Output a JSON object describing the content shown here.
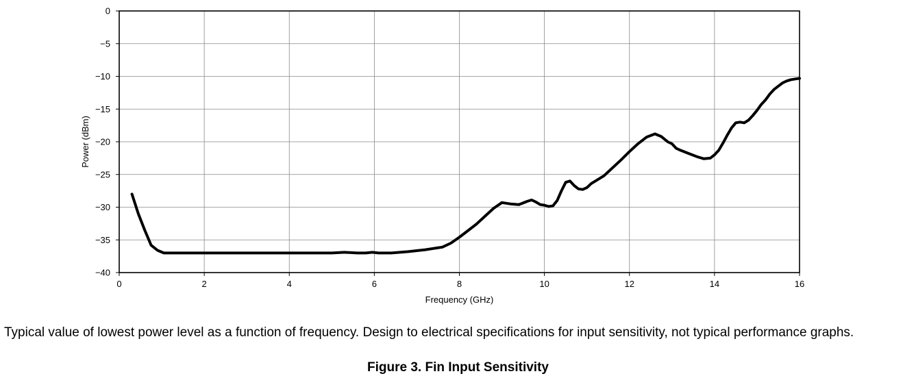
{
  "chart_data": {
    "type": "line",
    "title": "",
    "xlabel": "Frequency (GHz)",
    "ylabel": "Power (dBm)",
    "xlim": [
      0,
      16
    ],
    "ylim": [
      -40,
      0
    ],
    "xticks": [
      0,
      2,
      4,
      6,
      8,
      10,
      12,
      14,
      16
    ],
    "yticks": [
      0,
      -5,
      -10,
      -15,
      -20,
      -25,
      -30,
      -35,
      -40
    ],
    "xtick_labels": [
      "0",
      "2",
      "4",
      "6",
      "8",
      "10",
      "12",
      "14",
      "16"
    ],
    "ytick_labels": [
      "0",
      "−5",
      "−10",
      "−15",
      "−20",
      "−25",
      "−30",
      "−35",
      "−40"
    ],
    "grid": true,
    "legend": "none",
    "line_color": "#000000",
    "series": [
      {
        "x": [
          0.3,
          0.45,
          0.6,
          0.75,
          0.9,
          1.05,
          1.2,
          2,
          3,
          4,
          5,
          5.3,
          5.6,
          5.8,
          5.95,
          6.1,
          6.4,
          6.8,
          7.2,
          7.6,
          7.8,
          8.0,
          8.2,
          8.4,
          8.6,
          8.8,
          9.0,
          9.2,
          9.4,
          9.6,
          9.7,
          9.8,
          9.9,
          10.0,
          10.1,
          10.2,
          10.3,
          10.4,
          10.5,
          10.6,
          10.7,
          10.8,
          10.9,
          11.0,
          11.1,
          11.2,
          11.4,
          11.6,
          11.8,
          12.0,
          12.2,
          12.4,
          12.6,
          12.75,
          12.9,
          13.0,
          13.1,
          13.2,
          13.4,
          13.6,
          13.75,
          13.9,
          14.0,
          14.1,
          14.2,
          14.3,
          14.4,
          14.5,
          14.6,
          14.7,
          14.8,
          14.9,
          15.0,
          15.1,
          15.2,
          15.3,
          15.4,
          15.5,
          15.6,
          15.7,
          15.8,
          15.9,
          16.0
        ],
        "y": [
          -28,
          -31,
          -33.5,
          -35.8,
          -36.6,
          -37,
          -37,
          -37,
          -37,
          -37,
          -37,
          -36.9,
          -37,
          -37,
          -36.9,
          -37,
          -37,
          -36.8,
          -36.5,
          -36.1,
          -35.5,
          -34.6,
          -33.6,
          -32.6,
          -31.4,
          -30.2,
          -29.3,
          -29.5,
          -29.6,
          -29.1,
          -28.9,
          -29.2,
          -29.6,
          -29.7,
          -29.9,
          -29.8,
          -29.0,
          -27.5,
          -26.2,
          -26.0,
          -26.7,
          -27.2,
          -27.3,
          -27.0,
          -26.4,
          -26.0,
          -25.2,
          -24.0,
          -22.8,
          -21.5,
          -20.3,
          -19.3,
          -18.8,
          -19.2,
          -20.0,
          -20.3,
          -21.0,
          -21.3,
          -21.8,
          -22.3,
          -22.6,
          -22.5,
          -22.0,
          -21.3,
          -20.2,
          -19.0,
          -17.9,
          -17.1,
          -17.0,
          -17.1,
          -16.7,
          -16.0,
          -15.2,
          -14.3,
          -13.6,
          -12.7,
          -12.0,
          -11.5,
          -11.0,
          -10.7,
          -10.5,
          -10.4,
          -10.3
        ]
      }
    ]
  },
  "caption": "Typical value of lowest power level as a function of frequency. Design to electrical specifications for input sensitivity, not typical performance graphs.",
  "figure_title": "Figure 3. Fin Input Sensitivity"
}
